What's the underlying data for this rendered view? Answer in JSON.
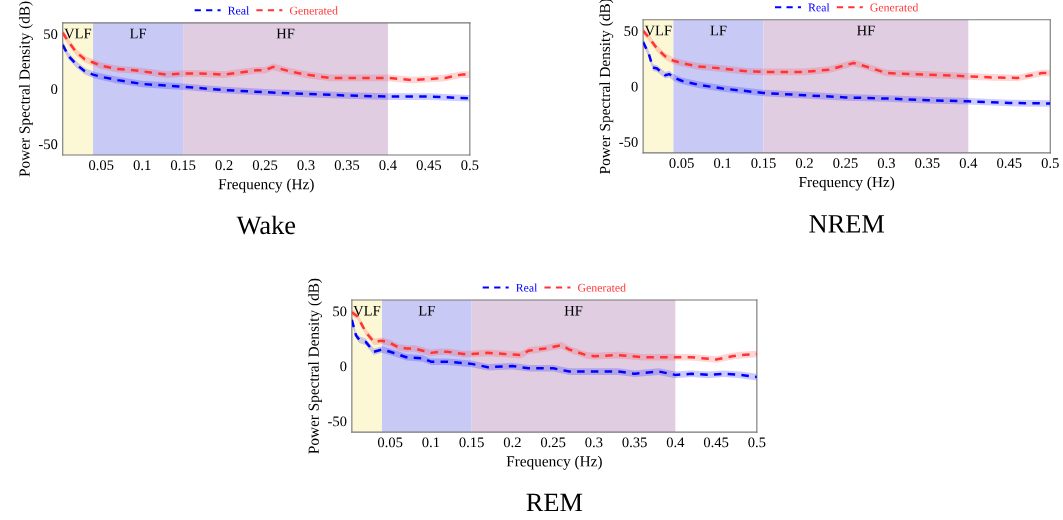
{
  "chart_data": [
    {
      "type": "line",
      "title": "Wake",
      "xlabel": "Frequency (Hz)",
      "ylabel": "Power Spectral Density (dB)",
      "xlim": [
        0.003,
        0.5
      ],
      "ylim": [
        -60,
        60
      ],
      "xticks": [
        0.05,
        0.1,
        0.15,
        0.2,
        0.25,
        0.3,
        0.35,
        0.4,
        0.45,
        0.5
      ],
      "yticks": [
        -50,
        0,
        50
      ],
      "grid": false,
      "legend": "top",
      "line_style": "dashed",
      "marker": "none",
      "bands": [
        {
          "axis": "x",
          "from": 0.003,
          "to": 0.04,
          "label": "VLF",
          "color": "#fcf8d6"
        },
        {
          "axis": "x",
          "from": 0.04,
          "to": 0.15,
          "label": "LF",
          "color": "#c9c9f6"
        },
        {
          "axis": "x",
          "from": 0.15,
          "to": 0.4,
          "label": "HF",
          "color": "#e0cde2"
        }
      ],
      "series": [
        {
          "name": "Real",
          "color": "#0000ff",
          "x": [
            0.003,
            0.01,
            0.02,
            0.03,
            0.04,
            0.05,
            0.07,
            0.1,
            0.13,
            0.15,
            0.2,
            0.25,
            0.3,
            0.35,
            0.4,
            0.45,
            0.5
          ],
          "values": [
            40,
            30,
            22,
            16,
            13,
            11,
            8,
            4.5,
            3,
            2,
            -1,
            -3,
            -4.5,
            -6,
            -7,
            -7,
            -8.5
          ],
          "lower": [
            37,
            27,
            19,
            13,
            10,
            8,
            5,
            1.5,
            0,
            -1,
            -4,
            -6,
            -7.5,
            -9,
            -10,
            -10,
            -11.5
          ],
          "upper": [
            43,
            33,
            25,
            19,
            16,
            14,
            11,
            7.5,
            6,
            5,
            2,
            0,
            -1.5,
            -3,
            -4,
            -4,
            -5.5
          ]
        },
        {
          "name": "Generated",
          "color": "#ff3333",
          "x": [
            0.003,
            0.01,
            0.02,
            0.03,
            0.04,
            0.05,
            0.07,
            0.09,
            0.11,
            0.13,
            0.15,
            0.17,
            0.2,
            0.22,
            0.24,
            0.25,
            0.26,
            0.28,
            0.3,
            0.33,
            0.36,
            0.4,
            0.43,
            0.45,
            0.47,
            0.49,
            0.5
          ],
          "values": [
            51,
            43,
            33,
            27,
            24,
            21,
            18,
            17,
            15,
            13,
            14,
            14,
            13,
            15,
            17,
            17,
            20,
            16,
            13,
            10,
            10,
            10,
            8,
            9,
            10,
            13,
            13
          ],
          "lower": [
            48,
            40,
            30,
            24,
            21,
            18,
            15,
            14,
            12,
            10,
            11,
            11,
            10,
            12,
            14,
            14,
            17,
            13,
            10,
            7,
            7,
            7,
            5,
            6,
            7,
            10,
            10
          ],
          "upper": [
            54,
            46,
            36,
            30,
            27,
            24,
            21,
            20,
            18,
            16,
            17,
            17,
            16,
            18,
            20,
            20,
            23,
            19,
            16,
            13,
            13,
            13,
            11,
            12,
            13,
            16,
            16
          ]
        }
      ]
    },
    {
      "type": "line",
      "title": "NREM",
      "xlabel": "Frequency (Hz)",
      "ylabel": "Power Spectral Density (dB)",
      "xlim": [
        0.003,
        0.5
      ],
      "ylim": [
        -60,
        60
      ],
      "xticks": [
        0.05,
        0.1,
        0.15,
        0.2,
        0.25,
        0.3,
        0.35,
        0.4,
        0.45,
        0.5
      ],
      "yticks": [
        -50,
        0,
        50
      ],
      "grid": false,
      "legend": "top",
      "line_style": "dashed",
      "marker": "none",
      "bands": [
        {
          "axis": "x",
          "from": 0.003,
          "to": 0.04,
          "label": "VLF",
          "color": "#fcf8d6"
        },
        {
          "axis": "x",
          "from": 0.04,
          "to": 0.15,
          "label": "LF",
          "color": "#c9c9f6"
        },
        {
          "axis": "x",
          "from": 0.15,
          "to": 0.4,
          "label": "HF",
          "color": "#e0cde2"
        }
      ],
      "series": [
        {
          "name": "Real",
          "color": "#0000ff",
          "x": [
            0.003,
            0.01,
            0.015,
            0.02,
            0.03,
            0.035,
            0.04,
            0.05,
            0.07,
            0.1,
            0.15,
            0.2,
            0.25,
            0.3,
            0.35,
            0.4,
            0.45,
            0.5
          ],
          "values": [
            40,
            29,
            17,
            16,
            10,
            11,
            8,
            5,
            1.5,
            -2,
            -6,
            -8,
            -10,
            -11,
            -12.5,
            -13.5,
            -15,
            -15.5
          ],
          "lower": [
            37,
            26,
            14,
            13,
            7,
            8,
            5,
            2,
            -1.5,
            -5,
            -9,
            -11,
            -13,
            -14,
            -15.5,
            -16.5,
            -18,
            -18.5
          ],
          "upper": [
            43,
            32,
            20,
            19,
            13,
            14,
            11,
            8,
            4.5,
            1,
            -3,
            -5,
            -7,
            -8,
            -9.5,
            -10.5,
            -12,
            -12.5
          ]
        },
        {
          "name": "Generated",
          "color": "#ff3333",
          "x": [
            0.003,
            0.01,
            0.02,
            0.03,
            0.04,
            0.05,
            0.07,
            0.1,
            0.13,
            0.15,
            0.2,
            0.23,
            0.25,
            0.26,
            0.27,
            0.3,
            0.35,
            0.4,
            0.43,
            0.46,
            0.49,
            0.5
          ],
          "values": [
            50,
            44,
            34,
            27,
            23,
            21,
            18,
            16,
            13.5,
            13,
            13,
            15,
            19,
            21,
            19,
            12,
            10.5,
            9,
            8,
            7.5,
            12,
            12
          ],
          "lower": [
            47,
            41,
            31,
            24,
            20,
            18,
            15,
            13,
            10.5,
            10,
            10,
            12,
            16,
            18,
            16,
            9,
            7.5,
            6,
            5,
            4.5,
            9,
            9
          ],
          "upper": [
            53,
            47,
            37,
            30,
            26,
            24,
            21,
            19,
            16.5,
            16,
            16,
            18,
            22,
            24,
            22,
            15,
            13.5,
            12,
            11,
            10.5,
            15,
            15
          ]
        }
      ]
    },
    {
      "type": "line",
      "title": "REM",
      "xlabel": "Frequency (Hz)",
      "ylabel": "Power Spectral Density (dB)",
      "xlim": [
        0.003,
        0.5
      ],
      "ylim": [
        -60,
        60
      ],
      "xticks": [
        0.05,
        0.1,
        0.15,
        0.2,
        0.25,
        0.3,
        0.35,
        0.4,
        0.45,
        0.5
      ],
      "yticks": [
        -50,
        0,
        50
      ],
      "grid": false,
      "legend": "top",
      "line_style": "dashed",
      "marker": "none",
      "bands": [
        {
          "axis": "x",
          "from": 0.003,
          "to": 0.04,
          "label": "VLF",
          "color": "#fcf8d6"
        },
        {
          "axis": "x",
          "from": 0.04,
          "to": 0.15,
          "label": "LF",
          "color": "#c9c9f6"
        },
        {
          "axis": "x",
          "from": 0.15,
          "to": 0.4,
          "label": "HF",
          "color": "#e0cde2"
        }
      ],
      "series": [
        {
          "name": "Real",
          "color": "#0000ff",
          "x": [
            0.003,
            0.008,
            0.012,
            0.02,
            0.03,
            0.04,
            0.05,
            0.07,
            0.09,
            0.1,
            0.12,
            0.15,
            0.17,
            0.2,
            0.22,
            0.25,
            0.27,
            0.3,
            0.33,
            0.35,
            0.38,
            0.4,
            0.42,
            0.44,
            0.46,
            0.48,
            0.5
          ],
          "values": [
            42,
            28,
            24,
            22,
            13,
            15,
            13,
            8,
            7,
            4,
            4,
            2,
            -1,
            0,
            -2,
            -2,
            -5,
            -5,
            -5,
            -7,
            -5,
            -8,
            -7,
            -8,
            -7,
            -8,
            -10
          ],
          "lower": [
            39,
            25,
            21,
            19,
            10,
            12,
            10,
            5,
            4,
            1,
            1,
            -1,
            -4,
            -3,
            -5,
            -5,
            -8,
            -8,
            -8,
            -10,
            -8,
            -11,
            -10,
            -11,
            -10,
            -11,
            -13
          ],
          "upper": [
            45,
            31,
            27,
            25,
            16,
            18,
            16,
            11,
            10,
            7,
            7,
            5,
            2,
            3,
            1,
            1,
            -2,
            -2,
            -2,
            -4,
            -2,
            -5,
            -4,
            -5,
            -4,
            -5,
            -7
          ]
        },
        {
          "name": "Generated",
          "color": "#ff3333",
          "x": [
            0.003,
            0.01,
            0.02,
            0.03,
            0.04,
            0.05,
            0.06,
            0.07,
            0.08,
            0.09,
            0.1,
            0.11,
            0.12,
            0.14,
            0.15,
            0.17,
            0.19,
            0.21,
            0.22,
            0.24,
            0.26,
            0.27,
            0.29,
            0.3,
            0.33,
            0.36,
            0.4,
            0.42,
            0.45,
            0.47,
            0.48,
            0.5
          ],
          "values": [
            49,
            45,
            31,
            22,
            23,
            21,
            17,
            16,
            16,
            14,
            12,
            13,
            13,
            11,
            11,
            12,
            11,
            10,
            14,
            16,
            19,
            15,
            10,
            9,
            10,
            8,
            8,
            8,
            6,
            9,
            10,
            11
          ],
          "lower": [
            46,
            42,
            28,
            19,
            20,
            18,
            14,
            13,
            13,
            11,
            9,
            10,
            10,
            8,
            8,
            9,
            8,
            7,
            11,
            13,
            16,
            12,
            7,
            6,
            7,
            5,
            5,
            5,
            3,
            6,
            7,
            8
          ],
          "upper": [
            52,
            48,
            34,
            25,
            26,
            24,
            20,
            19,
            19,
            17,
            15,
            16,
            16,
            14,
            14,
            15,
            14,
            13,
            17,
            19,
            22,
            18,
            13,
            12,
            13,
            11,
            11,
            11,
            9,
            12,
            13,
            14
          ]
        }
      ]
    }
  ]
}
